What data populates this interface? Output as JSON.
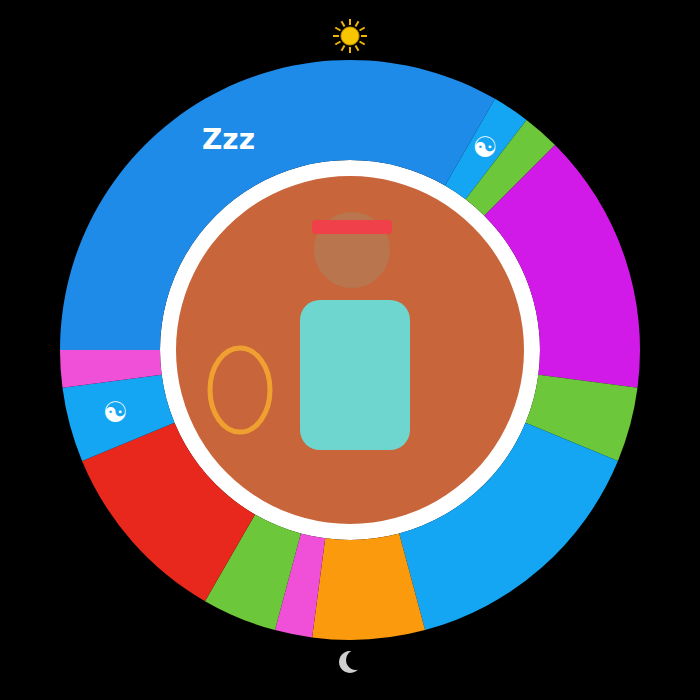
{
  "chart_data": {
    "type": "pie",
    "categories": [
      "Zzz",
      "☯",
      null,
      null,
      null,
      null,
      null,
      null,
      null,
      null,
      "☯",
      null
    ],
    "values": [
      8,
      0.5,
      0.5,
      3.5,
      1,
      3.5,
      1.5,
      0.5,
      1,
      2.5,
      1,
      0.5
    ],
    "colors": [
      "#1e8be8",
      "#14a6f3",
      "#6cc83a",
      "#d21ae8",
      "#6cc83a",
      "#14a6f3",
      "#fb9a0c",
      "#f050d8",
      "#6cc83a",
      "#e8281c",
      "#14a6f3",
      "#f050d8"
    ]
  }
}
